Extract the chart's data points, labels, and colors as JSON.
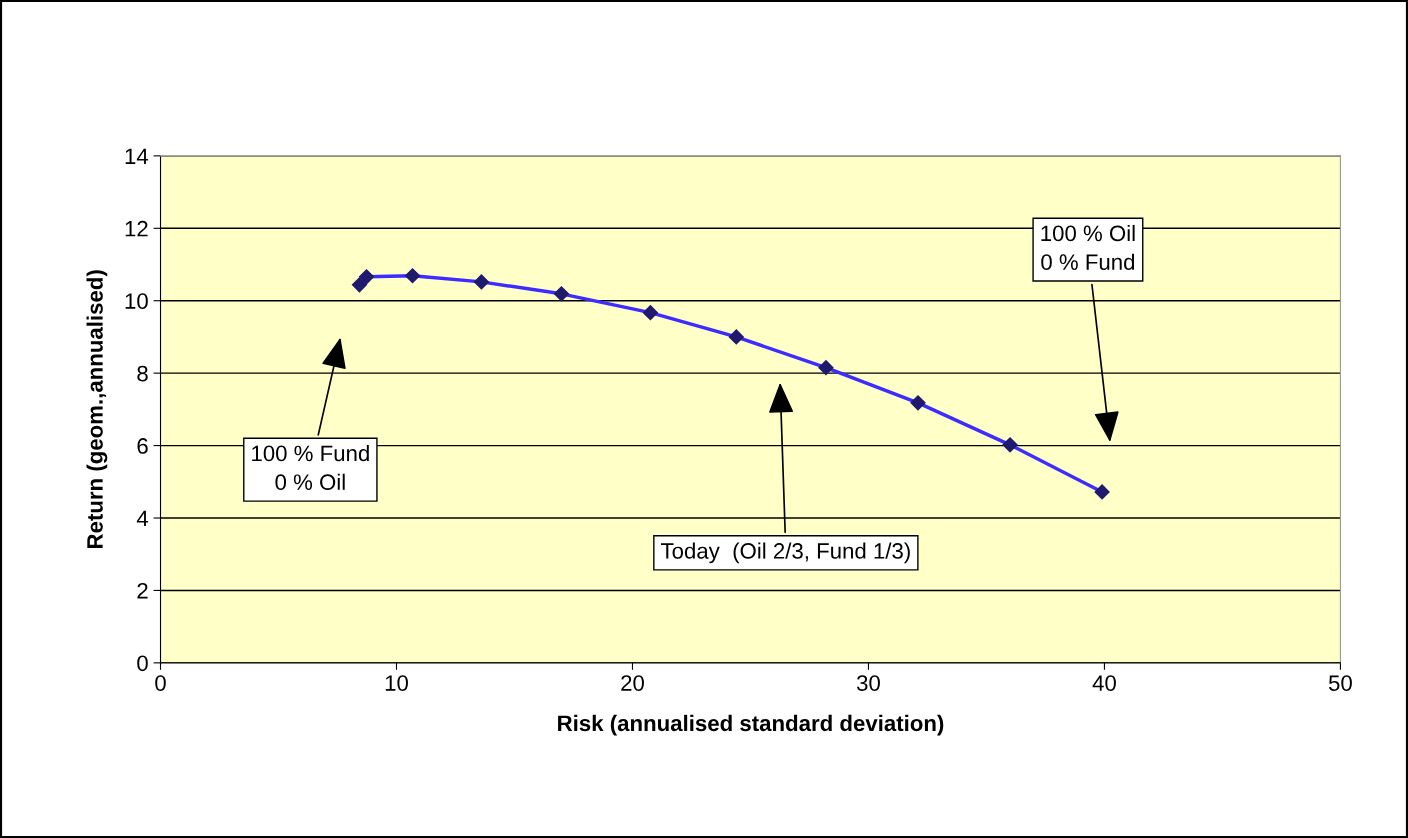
{
  "chart_data": {
    "type": "line",
    "xlabel": "Risk (annualised standard deviation)",
    "ylabel": "Return (geom.,annualised)",
    "x": [
      8.43,
      8.73,
      10.68,
      13.6,
      16.99,
      20.76,
      24.4,
      28.2,
      32.1,
      36.0,
      39.9
    ],
    "series": [
      {
        "color": "#3d2bff",
        "values": [
          10.44,
          10.66,
          10.69,
          10.52,
          10.19,
          9.67,
          9.0,
          8.15,
          7.18,
          6.02,
          4.72
        ]
      }
    ],
    "marker": "diamond",
    "line_style": "solid",
    "xlim": [
      0,
      50
    ],
    "xticks": [
      0,
      10,
      20,
      30,
      40,
      50
    ],
    "ylim": [
      0,
      14
    ],
    "yticks": [
      0,
      2,
      4,
      6,
      8,
      10,
      12,
      14
    ],
    "grid": "y",
    "legend": false,
    "annotations": [
      "100 % Fund\n0 % Oil",
      "Today  (Oil 2/3, Fund 1/3)",
      "100 % Oil\n0 % Fund"
    ]
  }
}
